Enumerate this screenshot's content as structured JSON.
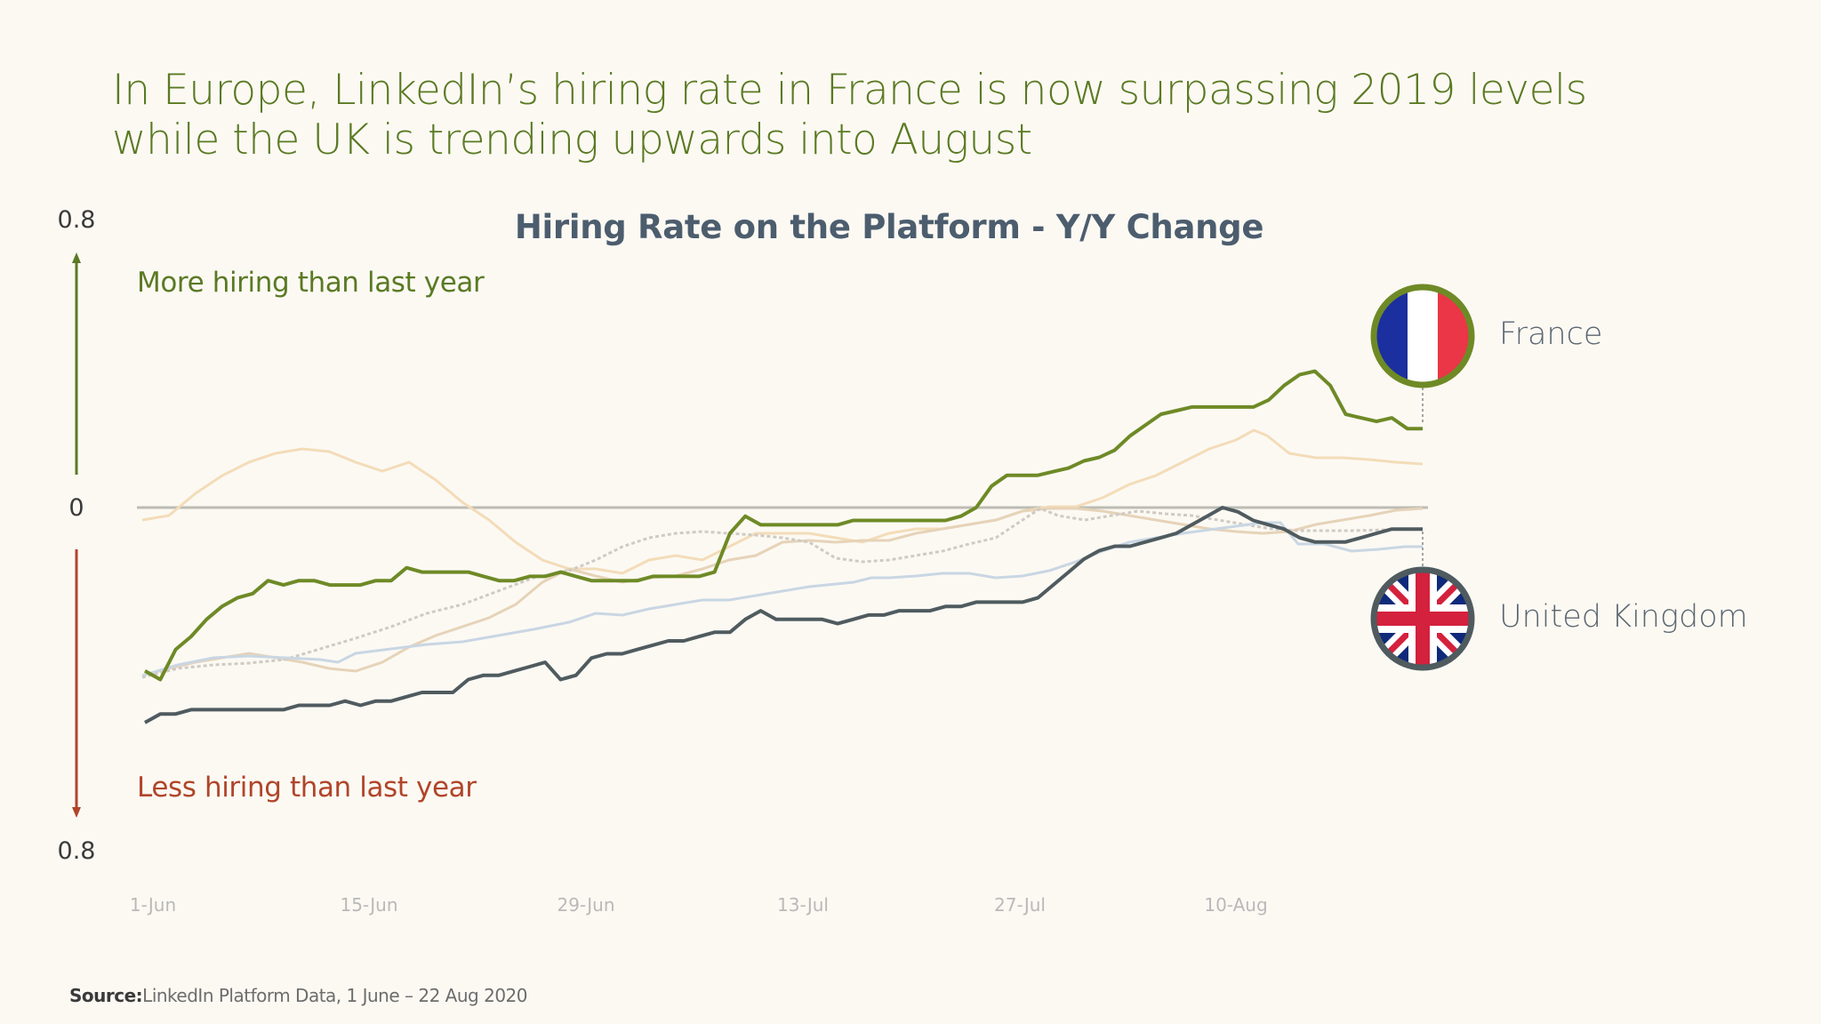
{
  "headline": "In Europe, LinkedIn’s hiring rate in France is now surpassing 2019 levels while the UK is trending upwards into August",
  "source": {
    "label": "Source:",
    "text": "LinkedIn Platform Data, 1 June – 22 Aug 2020"
  },
  "colors": {
    "background": "#fcf9f3",
    "france": "#6e8a26",
    "uk": "#4f5b5f",
    "more_hiring": "#5a7a23",
    "less_hiring": "#b0452a",
    "zero_line": "#bcbcb4"
  },
  "chart_data": {
    "type": "line",
    "title": "Hiring Rate on the Platform - Y/Y Change",
    "ylim": [
      -0.8,
      0.8
    ],
    "y_ticks": [
      "0.8",
      "0",
      "0.8"
    ],
    "x_ticks": [
      "1-Jun",
      "15-Jun",
      "29-Jun",
      "13-Jul",
      "27-Jul",
      "10-Aug"
    ],
    "x_range": [
      "2020-06-01",
      "2020-08-22"
    ],
    "annotations": {
      "more": "More hiring than last year",
      "less": "Less hiring than last year"
    },
    "labels": {
      "france": "France",
      "uk": "United Kingdom"
    },
    "series": [
      {
        "id": "france",
        "highlighted": true,
        "start": "2020-06-01",
        "values": [
          -0.38,
          -0.4,
          -0.33,
          -0.3,
          -0.26,
          -0.23,
          -0.21,
          -0.2,
          -0.17,
          -0.18,
          -0.17,
          -0.17,
          -0.18,
          -0.18,
          -0.18,
          -0.17,
          -0.17,
          -0.14,
          -0.15,
          -0.15,
          -0.15,
          -0.15,
          -0.16,
          -0.17,
          -0.17,
          -0.16,
          -0.16,
          -0.15,
          -0.16,
          -0.17,
          -0.17,
          -0.17,
          -0.17,
          -0.16,
          -0.16,
          -0.16,
          -0.16,
          -0.15,
          -0.06,
          -0.02,
          -0.04,
          -0.04,
          -0.04,
          -0.04,
          -0.04,
          -0.04,
          -0.03,
          -0.03,
          -0.03,
          -0.03,
          -0.03,
          -0.03,
          -0.03,
          -0.02,
          0.0,
          0.06,
          0.09,
          0.09,
          0.09,
          0.1,
          0.11,
          0.13,
          0.14,
          0.16,
          0.2,
          0.23,
          0.26,
          0.27,
          0.28,
          0.28,
          0.28,
          0.28,
          0.28,
          0.3,
          0.34,
          0.37,
          0.38,
          0.34,
          0.26,
          0.25,
          0.24,
          0.25,
          0.22,
          0.22
        ],
        "values_note": ""
      },
      {
        "id": "uk",
        "highlighted": true,
        "start": "2020-06-01",
        "values": [
          -0.5,
          -0.48,
          -0.48,
          -0.47,
          -0.47,
          -0.47,
          -0.47,
          -0.47,
          -0.47,
          -0.47,
          -0.46,
          -0.46,
          -0.46,
          -0.45,
          -0.46,
          -0.45,
          -0.45,
          -0.44,
          -0.43,
          -0.43,
          -0.43,
          -0.4,
          -0.39,
          -0.39,
          -0.38,
          -0.37,
          -0.36,
          -0.4,
          -0.39,
          -0.35,
          -0.34,
          -0.34,
          -0.33,
          -0.32,
          -0.31,
          -0.31,
          -0.3,
          -0.29,
          -0.29,
          -0.26,
          -0.24,
          -0.26,
          -0.26,
          -0.26,
          -0.26,
          -0.27,
          -0.26,
          -0.25,
          -0.25,
          -0.24,
          -0.24,
          -0.24,
          -0.23,
          -0.23,
          -0.22,
          -0.22,
          -0.22,
          -0.22,
          -0.21,
          -0.18,
          -0.15,
          -0.12,
          -0.1,
          -0.09,
          -0.09,
          -0.08,
          -0.07,
          -0.06,
          -0.04,
          -0.02,
          0.0,
          -0.01,
          -0.03,
          -0.04,
          -0.05,
          -0.07,
          -0.08,
          -0.08,
          -0.08,
          -0.07,
          -0.06,
          -0.05,
          -0.05,
          -0.05
        ]
      }
    ]
  }
}
